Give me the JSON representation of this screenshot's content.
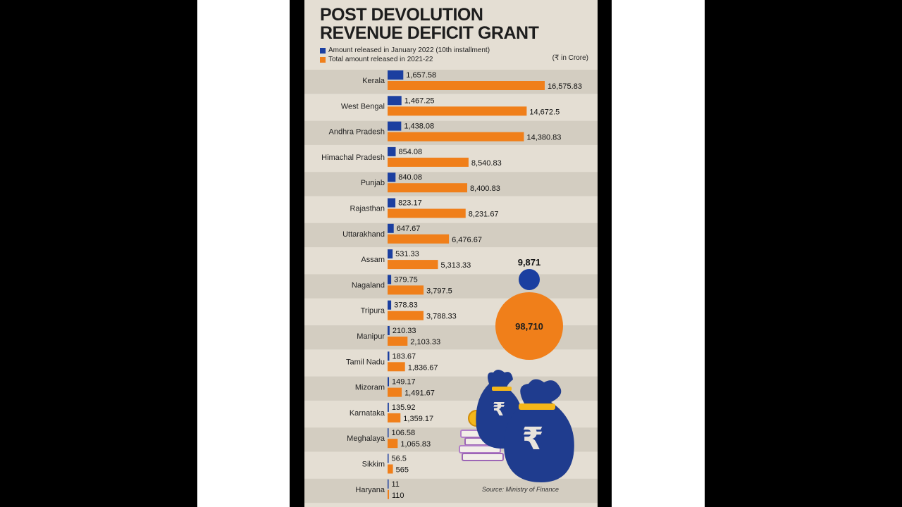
{
  "poster": {
    "title_line1": "POST DEVOLUTION",
    "title_line2": "REVENUE DEFICIT GRANT",
    "unit_note": "(₹ in Crore)",
    "source": "Source: Ministry of Finance"
  },
  "legend": {
    "january": "Amount released in January 2022 (10th installment)",
    "total": "Total amount released in 2021-22"
  },
  "totals": {
    "january": "9,871",
    "year": "98,710"
  },
  "colors": {
    "january": "#1b3fa0",
    "total": "#f07f1a",
    "background": "#e4ded3"
  },
  "chart_data": {
    "type": "bar",
    "orientation": "horizontal",
    "title": "POST DEVOLUTION REVENUE DEFICIT GRANT",
    "unit": "₹ in Crore",
    "categories": [
      "Kerala",
      "West Bengal",
      "Andhra Pradesh",
      "Himachal Pradesh",
      "Punjab",
      "Rajasthan",
      "Uttarakhand",
      "Assam",
      "Nagaland",
      "Tripura",
      "Manipur",
      "Tamil Nadu",
      "Mizoram",
      "Karnataka",
      "Meghalaya",
      "Sikkim",
      "Haryana"
    ],
    "series": [
      {
        "name": "Amount released in January 2022 (10th installment)",
        "values": [
          1657.58,
          1467.25,
          1438.08,
          854.08,
          840.08,
          823.17,
          647.67,
          531.33,
          379.75,
          378.83,
          210.33,
          183.67,
          149.17,
          135.92,
          106.58,
          56.5,
          11
        ],
        "labels": [
          "1,657.58",
          "1,467.25",
          "1,438.08",
          "854.08",
          "840.08",
          "823.17",
          "647.67",
          "531.33",
          "379.75",
          "378.83",
          "210.33",
          "183.67",
          "149.17",
          "135.92",
          "106.58",
          "56.5",
          "11"
        ]
      },
      {
        "name": "Total amount released in 2021-22",
        "values": [
          16575.83,
          14672.5,
          14380.83,
          8540.83,
          8400.83,
          8231.67,
          6476.67,
          5313.33,
          3797.5,
          3788.33,
          2103.33,
          1836.67,
          1491.67,
          1359.17,
          1065.83,
          565,
          110
        ],
        "labels": [
          "16,575.83",
          "14,672.5",
          "14,380.83",
          "8,540.83",
          "8,400.83",
          "8,231.67",
          "6,476.67",
          "5,313.33",
          "3,797.5",
          "3,788.33",
          "2,103.33",
          "1,836.67",
          "1,491.67",
          "1,359.17",
          "1,065.83",
          "565",
          "110"
        ]
      }
    ],
    "legend_position": "top-left"
  }
}
